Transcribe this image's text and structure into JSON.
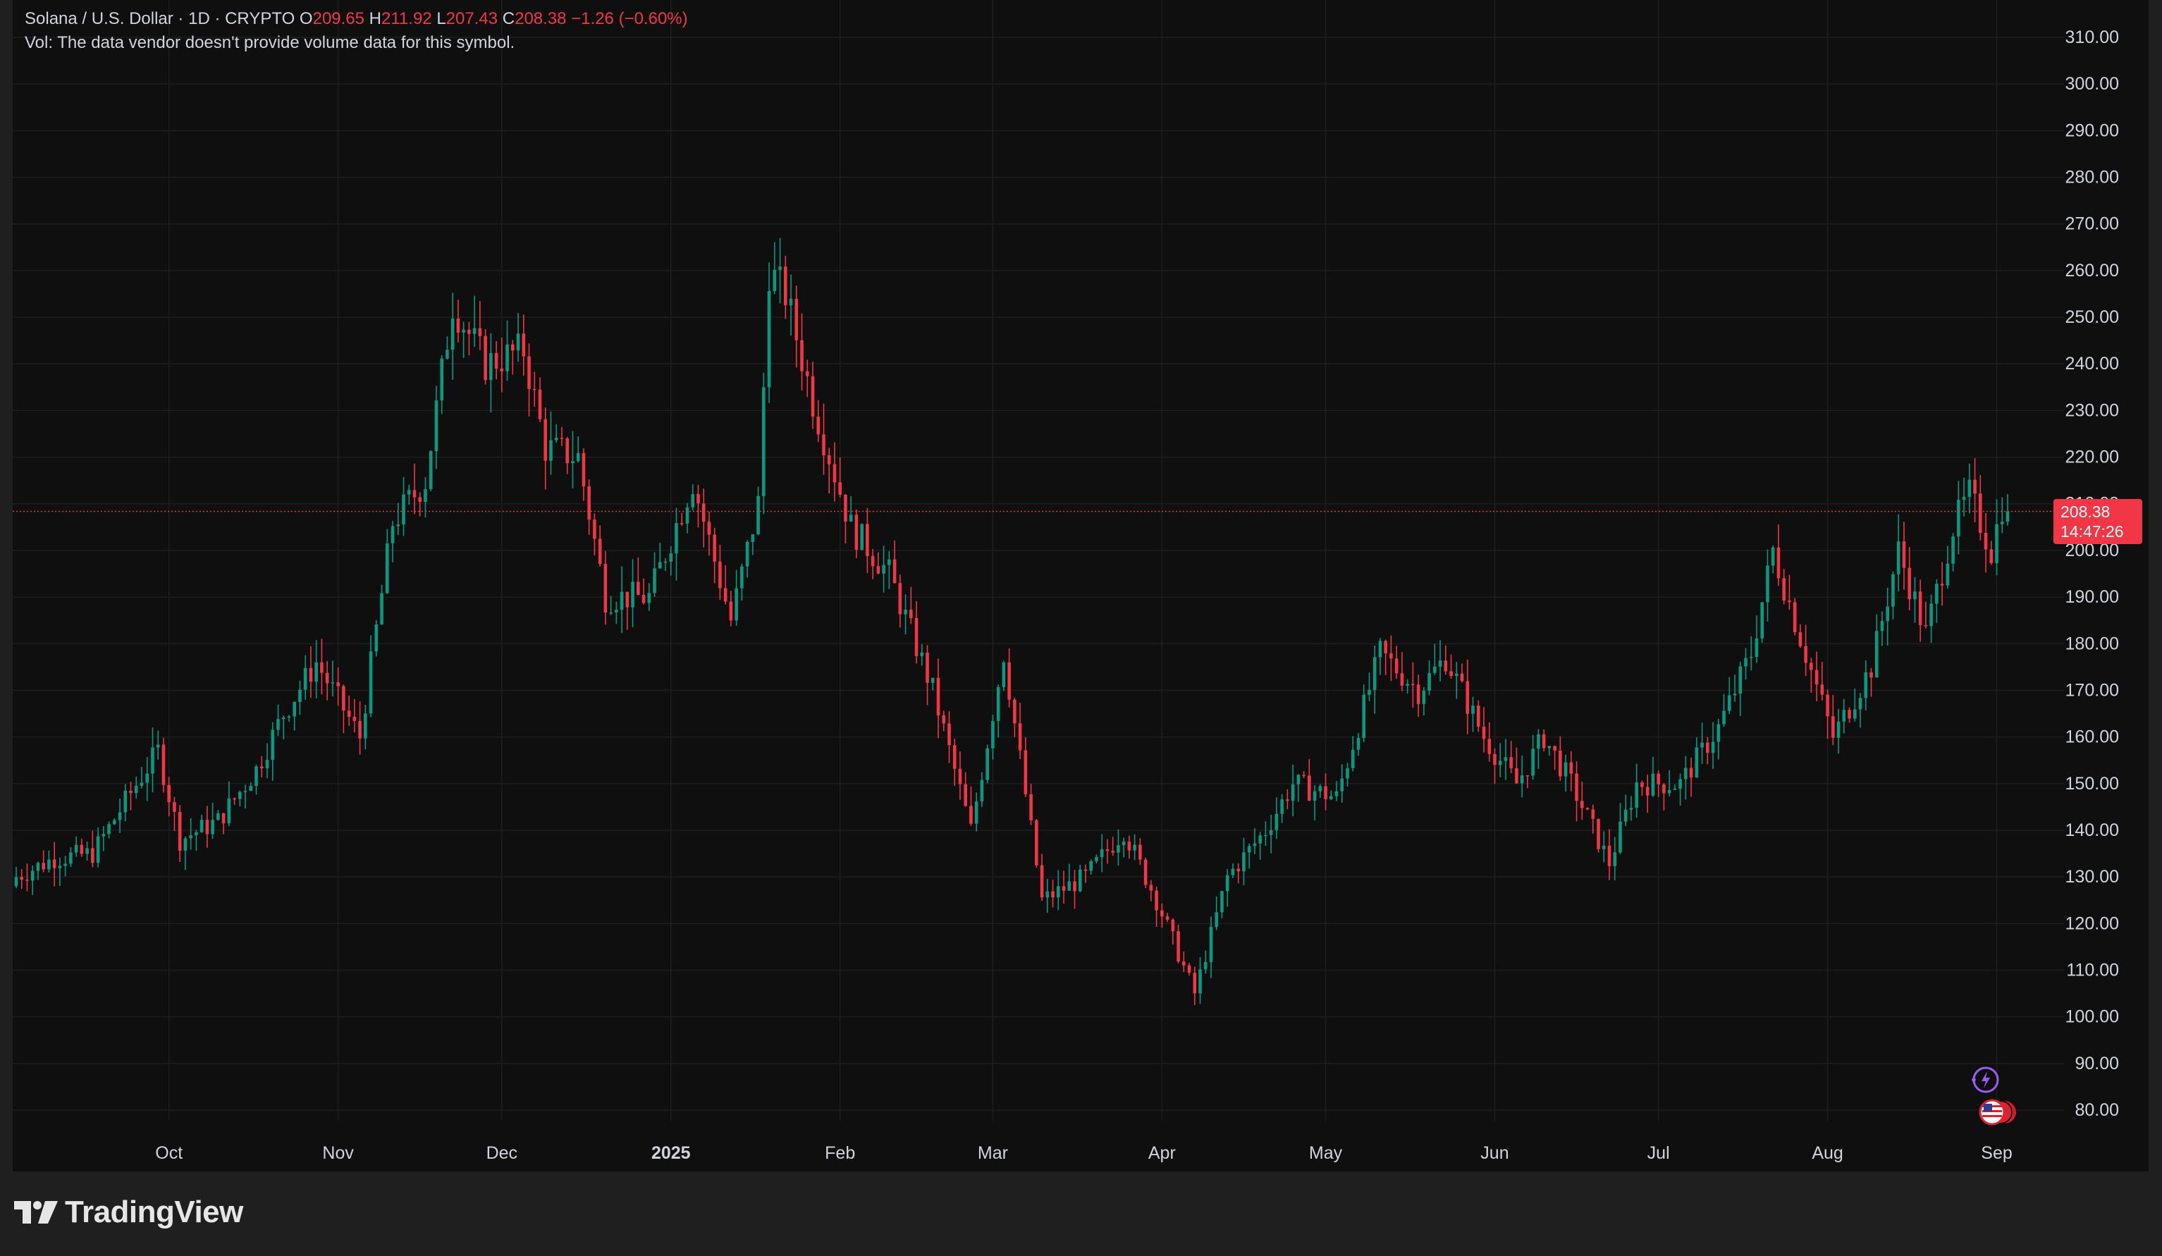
{
  "legend": {
    "symbol": "Solana / U.S. Dollar · 1D · CRYPTO",
    "open_label": "O",
    "open": "209.65",
    "high_label": "H",
    "high": "211.92",
    "low_label": "L",
    "low": "207.43",
    "close_label": "C",
    "close": "208.38",
    "change": "−1.26 (−0.60%)",
    "volume_note": "Vol: The data vendor doesn't provide volume data for this symbol."
  },
  "last_price": {
    "value": "208.38",
    "countdown": "14:47:26"
  },
  "colors": {
    "background": "#0f0f0f",
    "up": "#089981",
    "down": "#f23645",
    "grid": "#1e1e1e",
    "text": "#d1d4dc",
    "footer": "#1f1f1f"
  },
  "brand": {
    "name": "TradingView"
  },
  "icons": [
    "lightning-icon",
    "us-flag-icon",
    "tradingview-logo-icon"
  ],
  "chart_data": {
    "type": "candlestick",
    "x_axis_labels": [
      "Oct",
      "Nov",
      "Dec",
      "2025",
      "Feb",
      "Mar",
      "Apr",
      "May",
      "Jun",
      "Jul",
      "Aug",
      "Sep"
    ],
    "x_axis_label_dates": [
      "2024-10-01",
      "2024-11-01",
      "2024-12-01",
      "2025-01-01",
      "2025-02-01",
      "2025-03-01",
      "2025-04-01",
      "2025-05-01",
      "2025-06-01",
      "2025-07-01",
      "2025-08-01",
      "2025-09-01"
    ],
    "y_axis_labels": [
      "310.00",
      "300.00",
      "290.00",
      "280.00",
      "270.00",
      "260.00",
      "250.00",
      "240.00",
      "230.00",
      "220.00",
      "210.00",
      "200.00",
      "190.00",
      "180.00",
      "170.00",
      "160.00",
      "150.00",
      "140.00",
      "130.00",
      "120.00",
      "110.00",
      "100.00",
      "90.00",
      "80.00"
    ],
    "ylim": [
      78,
      313
    ],
    "date_range": [
      "2024-09-03",
      "2025-09-03"
    ],
    "grid": true,
    "last_price_line": 208.38,
    "approx_close_path": [
      {
        "date": "2024-09-03",
        "close": 130
      },
      {
        "date": "2024-09-10",
        "close": 134
      },
      {
        "date": "2024-09-17",
        "close": 135
      },
      {
        "date": "2024-09-24",
        "close": 148
      },
      {
        "date": "2024-09-29",
        "close": 157
      },
      {
        "date": "2024-10-03",
        "close": 138
      },
      {
        "date": "2024-10-10",
        "close": 142
      },
      {
        "date": "2024-10-17",
        "close": 153
      },
      {
        "date": "2024-10-22",
        "close": 165
      },
      {
        "date": "2024-10-28",
        "close": 176
      },
      {
        "date": "2024-11-05",
        "close": 160
      },
      {
        "date": "2024-11-11",
        "close": 206
      },
      {
        "date": "2024-11-17",
        "close": 215
      },
      {
        "date": "2024-11-22",
        "close": 253
      },
      {
        "date": "2024-11-28",
        "close": 240
      },
      {
        "date": "2024-12-05",
        "close": 243
      },
      {
        "date": "2024-12-09",
        "close": 222
      },
      {
        "date": "2024-12-15",
        "close": 220
      },
      {
        "date": "2024-12-20",
        "close": 190
      },
      {
        "date": "2024-12-28",
        "close": 190
      },
      {
        "date": "2025-01-05",
        "close": 215
      },
      {
        "date": "2025-01-12",
        "close": 185
      },
      {
        "date": "2025-01-17",
        "close": 210
      },
      {
        "date": "2025-01-19",
        "close": 260
      },
      {
        "date": "2025-01-22",
        "close": 255
      },
      {
        "date": "2025-01-27",
        "close": 232
      },
      {
        "date": "2025-02-03",
        "close": 205
      },
      {
        "date": "2025-02-10",
        "close": 195
      },
      {
        "date": "2025-02-18",
        "close": 170
      },
      {
        "date": "2025-02-25",
        "close": 140
      },
      {
        "date": "2025-03-03",
        "close": 178
      },
      {
        "date": "2025-03-10",
        "close": 125
      },
      {
        "date": "2025-03-18",
        "close": 130
      },
      {
        "date": "2025-03-25",
        "close": 140
      },
      {
        "date": "2025-03-31",
        "close": 125
      },
      {
        "date": "2025-04-07",
        "close": 105
      },
      {
        "date": "2025-04-13",
        "close": 130
      },
      {
        "date": "2025-04-20",
        "close": 140
      },
      {
        "date": "2025-04-25",
        "close": 150
      },
      {
        "date": "2025-05-03",
        "close": 147
      },
      {
        "date": "2025-05-11",
        "close": 178
      },
      {
        "date": "2025-05-18",
        "close": 170
      },
      {
        "date": "2025-05-23",
        "close": 177
      },
      {
        "date": "2025-05-30",
        "close": 160
      },
      {
        "date": "2025-06-05",
        "close": 150
      },
      {
        "date": "2025-06-10",
        "close": 160
      },
      {
        "date": "2025-06-15",
        "close": 150
      },
      {
        "date": "2025-06-22",
        "close": 133
      },
      {
        "date": "2025-06-27",
        "close": 150
      },
      {
        "date": "2025-07-05",
        "close": 150
      },
      {
        "date": "2025-07-12",
        "close": 162
      },
      {
        "date": "2025-07-18",
        "close": 178
      },
      {
        "date": "2025-07-22",
        "close": 200
      },
      {
        "date": "2025-07-26",
        "close": 185
      },
      {
        "date": "2025-08-02",
        "close": 160
      },
      {
        "date": "2025-08-09",
        "close": 175
      },
      {
        "date": "2025-08-14",
        "close": 200
      },
      {
        "date": "2025-08-19",
        "close": 182
      },
      {
        "date": "2025-08-24",
        "close": 205
      },
      {
        "date": "2025-08-27",
        "close": 212
      },
      {
        "date": "2025-08-31",
        "close": 200
      },
      {
        "date": "2025-09-02",
        "close": 209.65
      },
      {
        "date": "2025-09-03",
        "close": 208.38
      }
    ]
  }
}
